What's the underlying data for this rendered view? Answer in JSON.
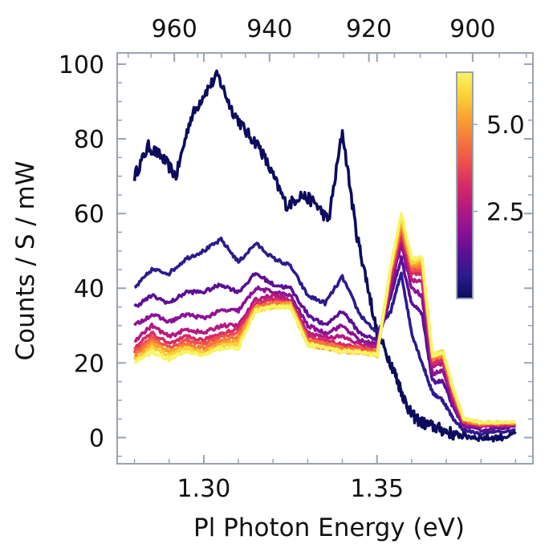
{
  "chart_data": {
    "type": "line",
    "xlabel": "Pl Photon Energy (eV)",
    "ylabel": "Counts / S / mW",
    "xlim": [
      1.275,
      1.395
    ],
    "ylim": [
      -7,
      103
    ],
    "x_ticks": [
      "1.30",
      "1.35"
    ],
    "x_tick_values": [
      1.3,
      1.35
    ],
    "y_ticks": [
      "0",
      "20",
      "40",
      "60",
      "80",
      "100"
    ],
    "y_tick_values": [
      0,
      20,
      40,
      60,
      80,
      100
    ],
    "top_axis_ticks": [
      "960",
      "940",
      "920",
      "900"
    ],
    "top_axis_tick_values": [
      960,
      940,
      920,
      900
    ],
    "colorbar": {
      "ticks": [
        "2.5",
        "5.0"
      ],
      "tick_values": [
        2.5,
        5.0
      ],
      "range": [
        0,
        6.5
      ],
      "colors": [
        "#0c0b5e",
        "#2b1b8c",
        "#5a0f95",
        "#8c1196",
        "#b5197f",
        "#d62a67",
        "#ee4f4c",
        "#f7773a",
        "#fba32f",
        "#fcd236",
        "#f6f566"
      ]
    },
    "grid": false,
    "series": [
      {
        "color": "#0c0b5e",
        "x": [
          1.28,
          1.284,
          1.288,
          1.292,
          1.296,
          1.3,
          1.304,
          1.308,
          1.312,
          1.316,
          1.32,
          1.324,
          1.328,
          1.332,
          1.336,
          1.34,
          1.344,
          1.347,
          1.35,
          1.354,
          1.356,
          1.358,
          1.36,
          1.363,
          1.366,
          1.369,
          1.372,
          1.375,
          1.38,
          1.385,
          1.39
        ],
        "y": [
          70,
          78,
          75,
          70,
          85,
          92,
          97,
          88,
          82,
          78,
          70,
          62,
          65,
          63,
          58,
          82,
          55,
          42,
          28,
          20,
          15,
          10,
          6,
          4,
          3,
          2,
          1,
          0.5,
          0,
          0,
          1
        ]
      },
      {
        "color": "#2b1b8c",
        "x": [
          1.28,
          1.285,
          1.29,
          1.295,
          1.3,
          1.305,
          1.31,
          1.315,
          1.32,
          1.325,
          1.33,
          1.335,
          1.34,
          1.345,
          1.35,
          1.354,
          1.357,
          1.36,
          1.363,
          1.366,
          1.369,
          1.372,
          1.375,
          1.38,
          1.39
        ],
        "y": [
          40,
          45,
          44,
          48,
          50,
          53,
          47,
          52,
          48,
          46,
          38,
          36,
          43,
          33,
          28,
          34,
          44,
          28,
          20,
          12,
          10,
          5,
          2,
          1,
          2
        ]
      },
      {
        "color": "#5a0f95",
        "x": [
          1.28,
          1.285,
          1.29,
          1.295,
          1.3,
          1.305,
          1.31,
          1.315,
          1.32,
          1.325,
          1.33,
          1.335,
          1.34,
          1.345,
          1.35,
          1.354,
          1.357,
          1.36,
          1.363,
          1.366,
          1.369,
          1.372,
          1.375,
          1.38,
          1.39
        ],
        "y": [
          35,
          38,
          36,
          39,
          39,
          41,
          39,
          44,
          41,
          40,
          33,
          30,
          34,
          28,
          26,
          38,
          48,
          36,
          33,
          15,
          15,
          8,
          3,
          2,
          3
        ]
      },
      {
        "color": "#8c1196",
        "x": [
          1.28,
          1.285,
          1.29,
          1.295,
          1.3,
          1.305,
          1.31,
          1.315,
          1.32,
          1.325,
          1.33,
          1.335,
          1.34,
          1.345,
          1.35,
          1.354,
          1.357,
          1.36,
          1.363,
          1.366,
          1.369,
          1.372,
          1.375,
          1.38,
          1.39
        ],
        "y": [
          30,
          33,
          31,
          33,
          32,
          34,
          34,
          40,
          39,
          38,
          30,
          28,
          30,
          26,
          25,
          40,
          52,
          40,
          38,
          17,
          18,
          9,
          3,
          3,
          3
        ]
      },
      {
        "color": "#b5197f",
        "x": [
          1.28,
          1.285,
          1.29,
          1.295,
          1.3,
          1.305,
          1.31,
          1.315,
          1.32,
          1.325,
          1.33,
          1.335,
          1.34,
          1.345,
          1.35,
          1.354,
          1.357,
          1.36,
          1.363,
          1.366,
          1.369,
          1.372,
          1.375,
          1.38,
          1.39
        ],
        "y": [
          26,
          30,
          27,
          29,
          28,
          30,
          30,
          37,
          38,
          37,
          28,
          27,
          27,
          25,
          24,
          42,
          54,
          42,
          42,
          19,
          20,
          10,
          4,
          3,
          3.5
        ]
      },
      {
        "color": "#d62a67",
        "x": [
          1.28,
          1.285,
          1.29,
          1.295,
          1.3,
          1.305,
          1.31,
          1.315,
          1.32,
          1.325,
          1.33,
          1.335,
          1.34,
          1.345,
          1.35,
          1.354,
          1.357,
          1.36,
          1.363,
          1.366,
          1.369,
          1.372,
          1.375,
          1.38,
          1.39
        ],
        "y": [
          24,
          28,
          25,
          27,
          26,
          28,
          29,
          36,
          37,
          36,
          27,
          26,
          25,
          24,
          23,
          43,
          55,
          44,
          44,
          20,
          21,
          11,
          4,
          3.5,
          3.5
        ]
      },
      {
        "color": "#ee4f4c",
        "x": [
          1.28,
          1.285,
          1.29,
          1.295,
          1.3,
          1.305,
          1.31,
          1.315,
          1.32,
          1.325,
          1.33,
          1.335,
          1.34,
          1.345,
          1.35,
          1.354,
          1.357,
          1.36,
          1.363,
          1.366,
          1.369,
          1.372,
          1.375,
          1.38,
          1.39
        ],
        "y": [
          23,
          27,
          24,
          26,
          25,
          27,
          28,
          35,
          36,
          36,
          26,
          25,
          24,
          24,
          23,
          44,
          56,
          45,
          45,
          21,
          22,
          12,
          4.5,
          3.5,
          4
        ]
      },
      {
        "color": "#f7773a",
        "x": [
          1.28,
          1.285,
          1.29,
          1.295,
          1.3,
          1.305,
          1.31,
          1.315,
          1.32,
          1.325,
          1.33,
          1.335,
          1.34,
          1.345,
          1.35,
          1.354,
          1.357,
          1.36,
          1.363,
          1.366,
          1.369,
          1.372,
          1.375,
          1.38,
          1.39
        ],
        "y": [
          22,
          26,
          23,
          25,
          24,
          26,
          27,
          35,
          36,
          36,
          26,
          25,
          24,
          23,
          23,
          45,
          57,
          46,
          46,
          21,
          22,
          12,
          4.5,
          3.5,
          4
        ]
      },
      {
        "color": "#fba32f",
        "x": [
          1.28,
          1.285,
          1.29,
          1.295,
          1.3,
          1.305,
          1.31,
          1.315,
          1.32,
          1.325,
          1.33,
          1.335,
          1.34,
          1.345,
          1.35,
          1.354,
          1.357,
          1.36,
          1.363,
          1.366,
          1.369,
          1.372,
          1.375,
          1.38,
          1.39
        ],
        "y": [
          21,
          25,
          23,
          24,
          23,
          25,
          26,
          35,
          35,
          36,
          25,
          24,
          23,
          23,
          22,
          45,
          58,
          46,
          47,
          22,
          23,
          13,
          5,
          4,
          4
        ]
      },
      {
        "color": "#fcd236",
        "x": [
          1.28,
          1.285,
          1.29,
          1.295,
          1.3,
          1.305,
          1.31,
          1.315,
          1.32,
          1.325,
          1.33,
          1.335,
          1.34,
          1.345,
          1.35,
          1.354,
          1.357,
          1.36,
          1.363,
          1.366,
          1.369,
          1.372,
          1.375,
          1.38,
          1.39
        ],
        "y": [
          20.5,
          24,
          22,
          24,
          22.5,
          24.5,
          25,
          34,
          35,
          35,
          25,
          24,
          23,
          23,
          22,
          46,
          59,
          47,
          48,
          22,
          23,
          13,
          5,
          4,
          4
        ]
      },
      {
        "color": "#f6f566",
        "x": [
          1.28,
          1.285,
          1.29,
          1.295,
          1.3,
          1.305,
          1.31,
          1.315,
          1.32,
          1.325,
          1.33,
          1.335,
          1.34,
          1.345,
          1.35,
          1.354,
          1.357,
          1.36,
          1.363,
          1.366,
          1.369,
          1.372,
          1.375,
          1.38,
          1.39
        ],
        "y": [
          20,
          23,
          21,
          23,
          22,
          24,
          24,
          34,
          35,
          35,
          25,
          24,
          23,
          23,
          22,
          46,
          60,
          48,
          48,
          22,
          23,
          13,
          5,
          4,
          4
        ]
      }
    ]
  }
}
